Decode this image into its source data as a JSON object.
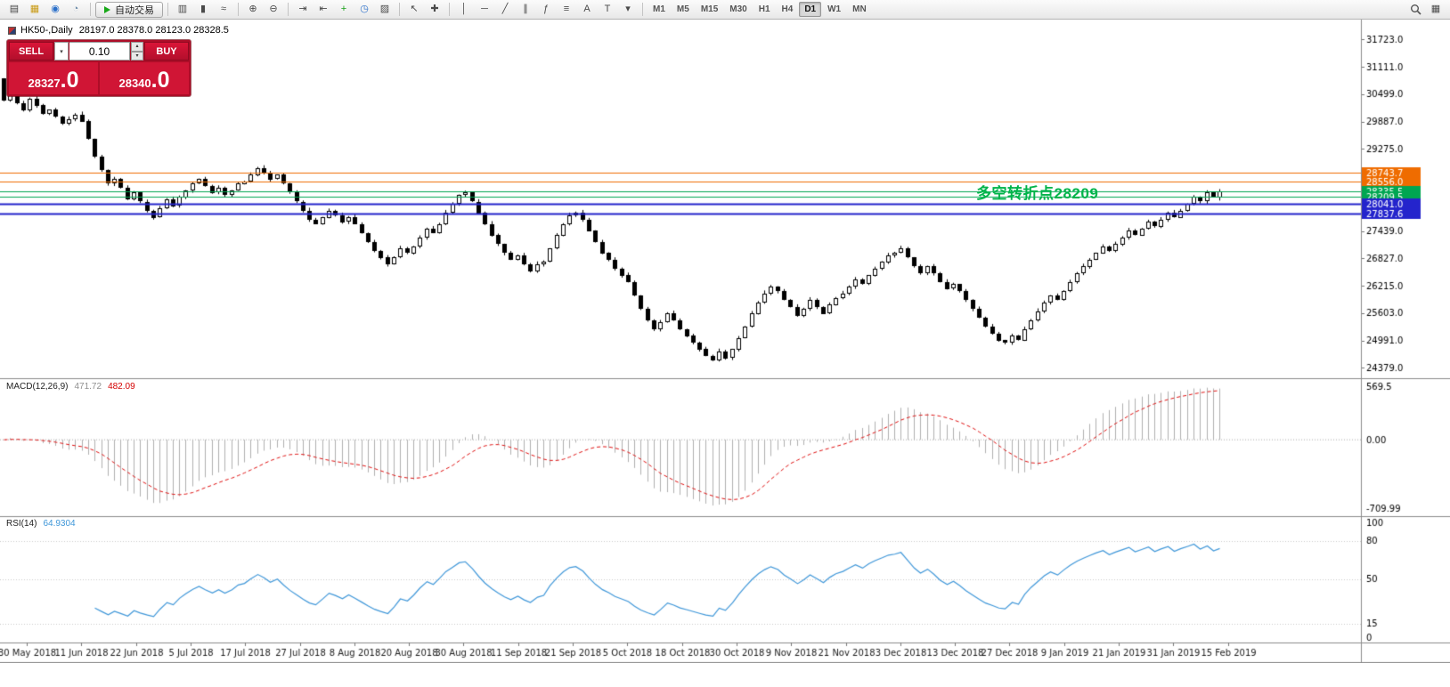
{
  "toolbar": {
    "window_icons": [
      {
        "name": "new-order-icon",
        "glyph": "▤",
        "color": "#444444"
      },
      {
        "name": "market-watch-icon",
        "glyph": "▦",
        "color": "#c99a14"
      },
      {
        "name": "navigator-icon",
        "glyph": "◉",
        "color": "#2a6fc9"
      },
      {
        "name": "terminal-icon",
        "glyph": "◔",
        "color": "#6a8aa8"
      }
    ],
    "autotrade": {
      "label": "自动交易"
    },
    "tools": [
      {
        "name": "bar-chart-icon",
        "glyph": "▥"
      },
      {
        "name": "candlestick-chart-icon",
        "glyph": "▮"
      },
      {
        "name": "line-chart-icon",
        "glyph": "≈"
      },
      {
        "sep": true
      },
      {
        "name": "zoom-in-icon",
        "glyph": "⊕"
      },
      {
        "name": "zoom-out-icon",
        "glyph": "⊖"
      },
      {
        "sep": true
      },
      {
        "name": "auto-scroll-icon",
        "glyph": "⇥"
      },
      {
        "name": "chart-shift-icon",
        "glyph": "⇤"
      },
      {
        "name": "indicators-icon",
        "glyph": "+",
        "color": "#18a018"
      },
      {
        "name": "periods-icon",
        "glyph": "◷",
        "color": "#2a6fc9"
      },
      {
        "name": "templates-icon",
        "glyph": "▨"
      },
      {
        "sep": true
      },
      {
        "name": "cursor-icon",
        "glyph": "↖"
      },
      {
        "name": "crosshair-icon",
        "glyph": "✚"
      },
      {
        "sep": true
      },
      {
        "name": "vertical-line-icon",
        "glyph": "│"
      },
      {
        "name": "horizontal-line-icon",
        "glyph": "─"
      },
      {
        "name": "trendline-icon",
        "glyph": "╱"
      },
      {
        "name": "equidistant-channel-icon",
        "glyph": "∥"
      },
      {
        "name": "fibonacci-icon",
        "glyph": "ƒ"
      },
      {
        "name": "shapes-icon",
        "glyph": "≡"
      },
      {
        "name": "text-icon",
        "glyph": "A"
      },
      {
        "name": "text-label-icon",
        "glyph": "T"
      },
      {
        "name": "arrow-tools-icon",
        "glyph": "▾"
      },
      {
        "sep": true
      }
    ],
    "timeframes": {
      "items": [
        "M1",
        "M5",
        "M15",
        "M30",
        "H1",
        "H4",
        "D1",
        "W1",
        "MN"
      ],
      "active": "D1"
    }
  },
  "chart_title": {
    "symbol_period": "HK50-,Daily",
    "ohlc": "28197.0 28378.0 28123.0 28328.5"
  },
  "trade_panel": {
    "sell_label": "SELL",
    "buy_label": "BUY",
    "volume": "0.10",
    "bid": "28327.0",
    "ask": "28340.0",
    "sell_price_main": "28327",
    "sell_price_frac": ".0",
    "buy_price_main": "28340",
    "buy_price_frac": ".0"
  },
  "annotation": {
    "text": "多空转折点28209",
    "color": "#00b44a"
  },
  "colors": {
    "histogram_gray": "#b0b0b0",
    "macd_signal_red": "#e01010",
    "rsi_blue": "#3f97d9",
    "axis_text": "#000000",
    "separator_gray": "#8c8c8c",
    "candle_black": "#000000",
    "tag_orange": "#ef6c00",
    "tag_green": "#00a651",
    "tag_blue": "#2424cc"
  },
  "chart_data": {
    "type": "candlestick",
    "symbol": "HK50-",
    "timeframe": "Daily",
    "first_open": 30850,
    "last_ohlc": [
      28197.0,
      28378.0,
      28123.0,
      28328.5
    ],
    "closes": [
      30350,
      30550,
      30300,
      30150,
      30400,
      30250,
      30050,
      30150,
      30000,
      29850,
      29950,
      30050,
      29900,
      29500,
      29100,
      28800,
      28500,
      28600,
      28400,
      28150,
      28300,
      28100,
      27900,
      27750,
      27950,
      28150,
      28000,
      28200,
      28350,
      28500,
      28600,
      28450,
      28300,
      28400,
      28250,
      28350,
      28500,
      28550,
      28700,
      28850,
      28750,
      28600,
      28700,
      28500,
      28300,
      28100,
      27900,
      27700,
      27600,
      27750,
      27900,
      27800,
      27650,
      27750,
      27600,
      27400,
      27200,
      27000,
      26850,
      26700,
      26850,
      27050,
      26950,
      27100,
      27300,
      27500,
      27400,
      27600,
      27850,
      28050,
      28250,
      28300,
      28100,
      27850,
      27600,
      27350,
      27150,
      26950,
      26800,
      26900,
      26700,
      26550,
      26700,
      26750,
      27050,
      27350,
      27600,
      27800,
      27850,
      27700,
      27450,
      27200,
      26950,
      26800,
      26600,
      26450,
      26300,
      26000,
      25700,
      25450,
      25250,
      25400,
      25600,
      25450,
      25250,
      25100,
      24950,
      24800,
      24650,
      24550,
      24750,
      24600,
      24800,
      25050,
      25300,
      25600,
      25850,
      26050,
      26200,
      26100,
      25900,
      25750,
      25550,
      25700,
      25900,
      25750,
      25600,
      25800,
      25950,
      26050,
      26200,
      26350,
      26250,
      26450,
      26600,
      26750,
      26900,
      26950,
      27050,
      26850,
      26650,
      26500,
      26650,
      26500,
      26300,
      26150,
      26250,
      26100,
      25900,
      25700,
      25500,
      25300,
      25150,
      25000,
      24950,
      25100,
      25000,
      25250,
      25450,
      25650,
      25850,
      26000,
      25900,
      26100,
      26300,
      26500,
      26650,
      26800,
      26950,
      27100,
      27000,
      27150,
      27300,
      27450,
      27350,
      27500,
      27650,
      27550,
      27700,
      27850,
      27750,
      27900,
      28050,
      28200,
      28100,
      28300,
      28197,
      28328.5
    ],
    "price_axis": {
      "view_min": 24150,
      "view_max": 32050,
      "ticks": [
        31723.0,
        31111.0,
        30499.0,
        29887.0,
        29275.0,
        28663.0,
        28051.0,
        27439.0,
        26827.0,
        26215.0,
        25603.0,
        24991.0,
        24379.0
      ]
    },
    "hlines": [
      {
        "price": 28743.7,
        "label": "28743.7",
        "color": "#ef6c00",
        "w": 1
      },
      {
        "price": 28556.0,
        "label": "28556.0",
        "color": "#ef6c00",
        "w": 1
      },
      {
        "price": 28335.5,
        "label": "28335.5",
        "color": "#00a651",
        "w": 1
      },
      {
        "price": 28209.5,
        "label": "28209.5",
        "color": "#00a651",
        "w": 1
      },
      {
        "price": 28041.0,
        "label": "28041.0",
        "color": "#2424cc",
        "w": 2
      },
      {
        "price": 27837.6,
        "label": "27837.6",
        "color": "#2424cc",
        "w": 2
      }
    ],
    "indicators": {
      "macd": {
        "name": "MACD(12,26,9)",
        "fast": 12,
        "slow": 26,
        "signal": 9,
        "value_main": "471.72",
        "value_signal": "482.09",
        "axis_top": "569.5",
        "axis_zero": "0.00",
        "axis_bottom": "-709.99"
      },
      "rsi": {
        "name": "RSI(14)",
        "period": 14,
        "value": "64.9304",
        "levels": [
          80,
          50,
          15
        ],
        "axis_labels": [
          100,
          80,
          50,
          15,
          0
        ]
      }
    },
    "date_labels": [
      "30 May 2018",
      "11 Jun 2018",
      "22 Jun 2018",
      "5 Jul 2018",
      "17 Jul 2018",
      "27 Jul 2018",
      "8 Aug 2018",
      "20 Aug 2018",
      "30 Aug 2018",
      "11 Sep 2018",
      "21 Sep 2018",
      "5 Oct 2018",
      "18 Oct 2018",
      "30 Oct 2018",
      "9 Nov 2018",
      "21 Nov 2018",
      "3 Dec 2018",
      "13 Dec 2018",
      "27 Dec 2018",
      "9 Jan 2019",
      "21 Jan 2019",
      "31 Jan 2019",
      "15 Feb 2019"
    ]
  }
}
